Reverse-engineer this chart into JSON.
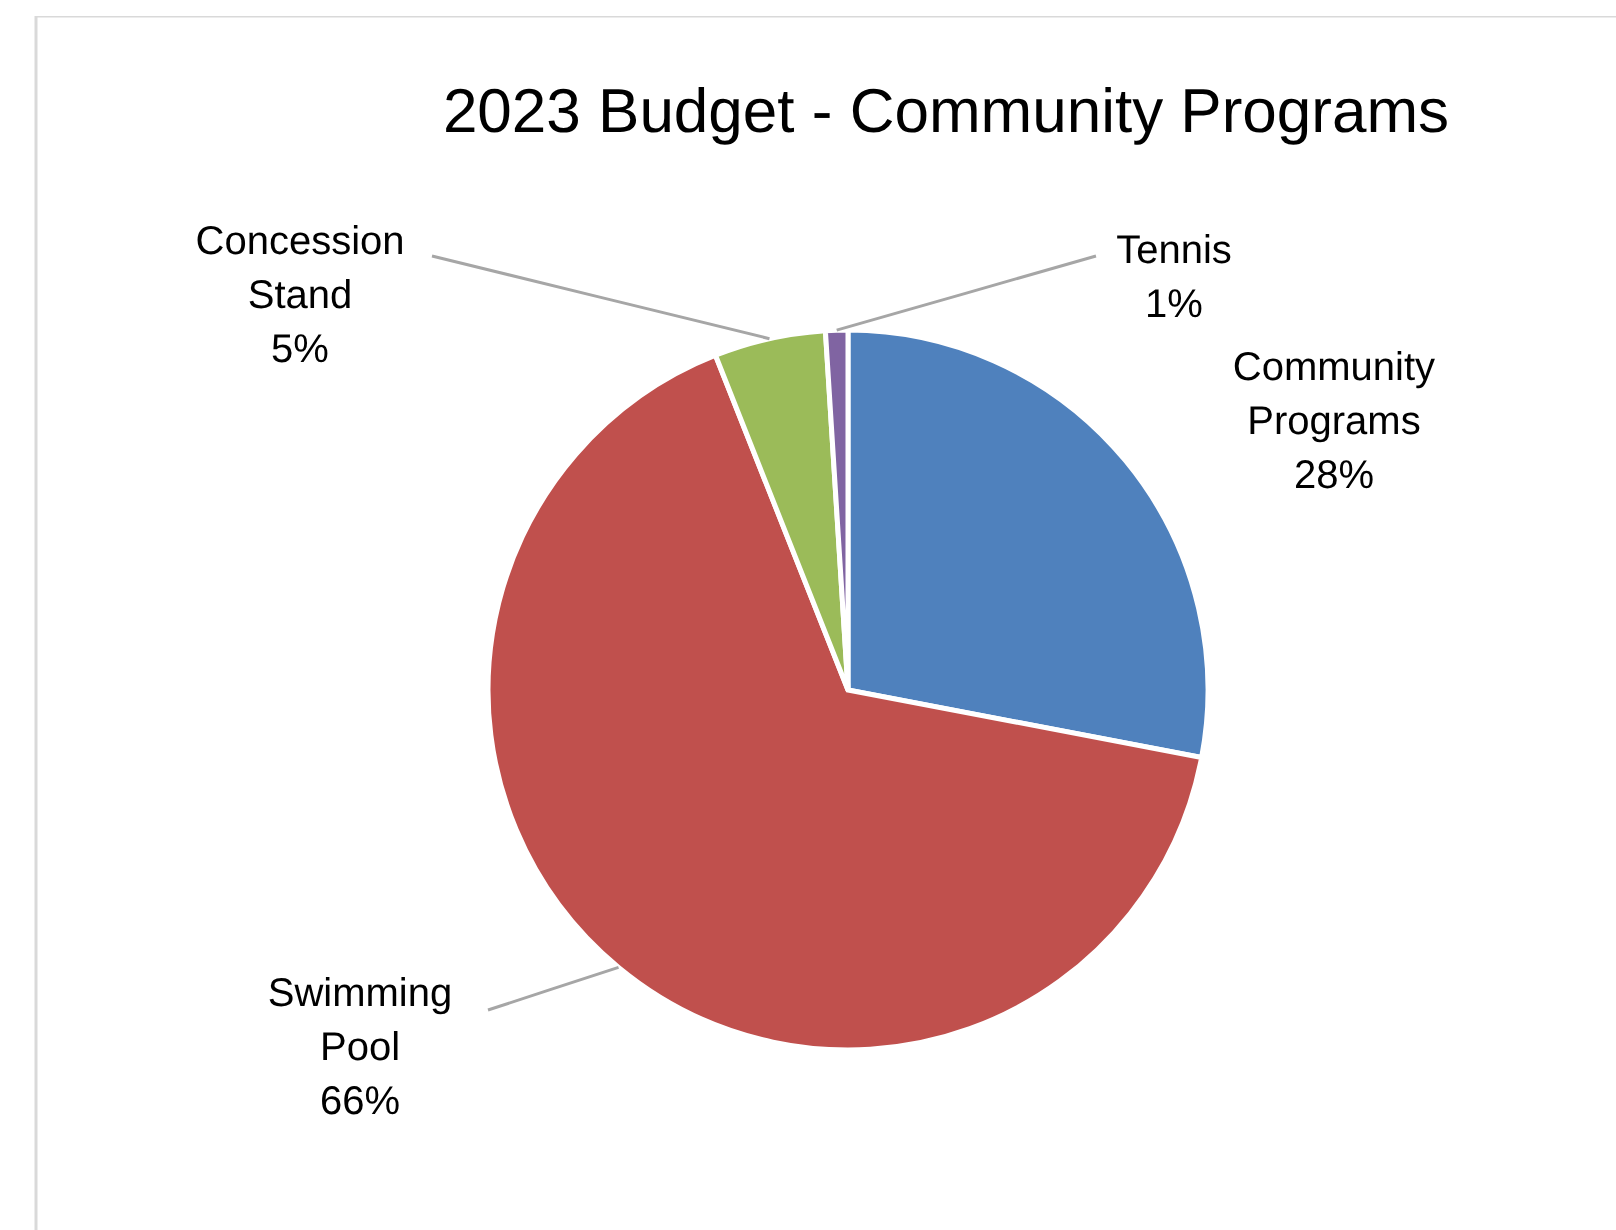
{
  "chart_data": {
    "type": "pie",
    "title": "2023 Budget - Community Programs",
    "categories": [
      "Community Programs",
      "Swimming Pool",
      "Concession Stand",
      "Tennis"
    ],
    "values": [
      28,
      66,
      5,
      1
    ],
    "value_labels": [
      "28%",
      "66%",
      "5%",
      "1%"
    ],
    "colors": [
      "#4f81bd",
      "#c0504d",
      "#9bbb59",
      "#8064a2"
    ]
  }
}
